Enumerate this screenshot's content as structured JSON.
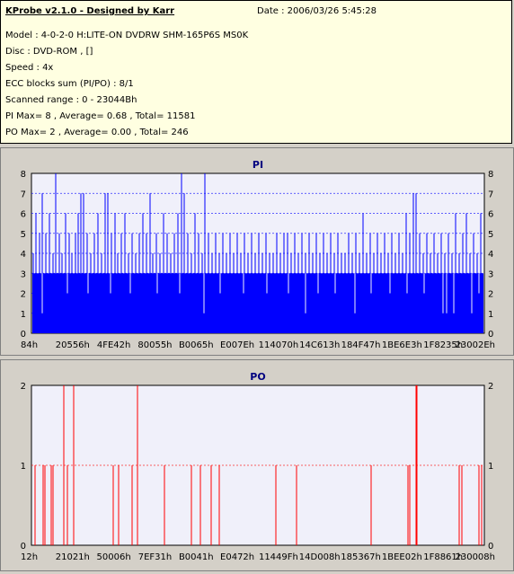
{
  "info": {
    "title": "KProbe v2.1.0 - Designed by Karr",
    "date": "Date : 2006/03/26 5:45:28",
    "lines": [
      "Model : 4-0-2-0 H:LITE-ON DVDRW SHM-165P6S MS0K",
      "Disc : DVD-ROM ,  []",
      "Speed : 4x",
      "ECC blocks sum (PI/PO) : 8/1",
      "Scanned range : 0 - 23044Bh",
      "PI Max= 8 , Average= 0.68 , Total= 11581",
      "PO Max= 2 , Average= 0.00 , Total= 246"
    ]
  },
  "colors": {
    "pi": "#0000ff",
    "po": "#ff0000",
    "plot_bg": "#f0f0fa",
    "title": "#000080"
  },
  "chart_data": [
    {
      "type": "bar",
      "title": "PI",
      "ylim": [
        0,
        8
      ],
      "yticks": [
        0,
        1,
        2,
        3,
        4,
        5,
        6,
        7,
        8
      ],
      "xticks": [
        "84h",
        "20556h",
        "4FE42h",
        "80055h",
        "B0065h",
        "E007Eh",
        "114070h",
        "14C613h",
        "184F47h",
        "1BE6E3h",
        "1F8235h",
        "23002Eh"
      ],
      "baseline": 3,
      "spikes": [
        {
          "x": 2,
          "v": 4
        },
        {
          "x": 5,
          "v": 6
        },
        {
          "x": 9,
          "v": 5
        },
        {
          "x": 12,
          "v": 7
        },
        {
          "x": 16,
          "v": 5
        },
        {
          "x": 20,
          "v": 6
        },
        {
          "x": 24,
          "v": 4
        },
        {
          "x": 27,
          "v": 8
        },
        {
          "x": 31,
          "v": 5
        },
        {
          "x": 34,
          "v": 4
        },
        {
          "x": 38,
          "v": 6
        },
        {
          "x": 42,
          "v": 5
        },
        {
          "x": 45,
          "v": 4
        },
        {
          "x": 49,
          "v": 5
        },
        {
          "x": 52,
          "v": 6
        },
        {
          "x": 55,
          "v": 7
        },
        {
          "x": 58,
          "v": 7
        },
        {
          "x": 62,
          "v": 5
        },
        {
          "x": 66,
          "v": 4
        },
        {
          "x": 70,
          "v": 5
        },
        {
          "x": 74,
          "v": 6
        },
        {
          "x": 78,
          "v": 4
        },
        {
          "x": 82,
          "v": 7
        },
        {
          "x": 85,
          "v": 7
        },
        {
          "x": 89,
          "v": 5
        },
        {
          "x": 93,
          "v": 6
        },
        {
          "x": 96,
          "v": 4
        },
        {
          "x": 100,
          "v": 5
        },
        {
          "x": 104,
          "v": 6
        },
        {
          "x": 108,
          "v": 4
        },
        {
          "x": 112,
          "v": 5
        },
        {
          "x": 116,
          "v": 4
        },
        {
          "x": 120,
          "v": 5
        },
        {
          "x": 124,
          "v": 6
        },
        {
          "x": 128,
          "v": 5
        },
        {
          "x": 132,
          "v": 7
        },
        {
          "x": 135,
          "v": 4
        },
        {
          "x": 139,
          "v": 5
        },
        {
          "x": 143,
          "v": 4
        },
        {
          "x": 147,
          "v": 6
        },
        {
          "x": 151,
          "v": 5
        },
        {
          "x": 155,
          "v": 4
        },
        {
          "x": 159,
          "v": 5
        },
        {
          "x": 163,
          "v": 6
        },
        {
          "x": 167,
          "v": 8
        },
        {
          "x": 170,
          "v": 7
        },
        {
          "x": 174,
          "v": 5
        },
        {
          "x": 178,
          "v": 4
        },
        {
          "x": 182,
          "v": 6
        },
        {
          "x": 186,
          "v": 5
        },
        {
          "x": 190,
          "v": 4
        },
        {
          "x": 193,
          "v": 8
        },
        {
          "x": 197,
          "v": 5
        },
        {
          "x": 201,
          "v": 4
        },
        {
          "x": 205,
          "v": 5
        },
        {
          "x": 209,
          "v": 4
        },
        {
          "x": 213,
          "v": 5
        },
        {
          "x": 217,
          "v": 4
        },
        {
          "x": 221,
          "v": 5
        },
        {
          "x": 225,
          "v": 4
        },
        {
          "x": 229,
          "v": 5
        },
        {
          "x": 233,
          "v": 4
        },
        {
          "x": 237,
          "v": 5
        },
        {
          "x": 241,
          "v": 4
        },
        {
          "x": 245,
          "v": 5
        },
        {
          "x": 249,
          "v": 4
        },
        {
          "x": 253,
          "v": 5
        },
        {
          "x": 257,
          "v": 4
        },
        {
          "x": 261,
          "v": 5
        },
        {
          "x": 265,
          "v": 4
        },
        {
          "x": 269,
          "v": 4
        },
        {
          "x": 273,
          "v": 5
        },
        {
          "x": 277,
          "v": 4
        },
        {
          "x": 281,
          "v": 5
        },
        {
          "x": 285,
          "v": 5
        },
        {
          "x": 289,
          "v": 4
        },
        {
          "x": 293,
          "v": 5
        },
        {
          "x": 297,
          "v": 4
        },
        {
          "x": 301,
          "v": 5
        },
        {
          "x": 305,
          "v": 4
        },
        {
          "x": 309,
          "v": 5
        },
        {
          "x": 313,
          "v": 4
        },
        {
          "x": 317,
          "v": 5
        },
        {
          "x": 321,
          "v": 4
        },
        {
          "x": 325,
          "v": 5
        },
        {
          "x": 329,
          "v": 4
        },
        {
          "x": 333,
          "v": 5
        },
        {
          "x": 337,
          "v": 4
        },
        {
          "x": 341,
          "v": 5
        },
        {
          "x": 345,
          "v": 4
        },
        {
          "x": 349,
          "v": 4
        },
        {
          "x": 353,
          "v": 5
        },
        {
          "x": 357,
          "v": 4
        },
        {
          "x": 361,
          "v": 5
        },
        {
          "x": 365,
          "v": 4
        },
        {
          "x": 369,
          "v": 6
        },
        {
          "x": 373,
          "v": 4
        },
        {
          "x": 377,
          "v": 5
        },
        {
          "x": 381,
          "v": 4
        },
        {
          "x": 385,
          "v": 5
        },
        {
          "x": 389,
          "v": 4
        },
        {
          "x": 393,
          "v": 5
        },
        {
          "x": 397,
          "v": 4
        },
        {
          "x": 401,
          "v": 5
        },
        {
          "x": 405,
          "v": 4
        },
        {
          "x": 409,
          "v": 5
        },
        {
          "x": 413,
          "v": 4
        },
        {
          "x": 417,
          "v": 6
        },
        {
          "x": 421,
          "v": 5
        },
        {
          "x": 425,
          "v": 7
        },
        {
          "x": 428,
          "v": 7
        },
        {
          "x": 432,
          "v": 5
        },
        {
          "x": 436,
          "v": 4
        },
        {
          "x": 440,
          "v": 5
        },
        {
          "x": 444,
          "v": 4
        },
        {
          "x": 448,
          "v": 5
        },
        {
          "x": 452,
          "v": 4
        },
        {
          "x": 456,
          "v": 5
        },
        {
          "x": 460,
          "v": 4
        },
        {
          "x": 464,
          "v": 5
        },
        {
          "x": 468,
          "v": 4
        },
        {
          "x": 472,
          "v": 6
        },
        {
          "x": 476,
          "v": 4
        },
        {
          "x": 480,
          "v": 5
        },
        {
          "x": 484,
          "v": 6
        },
        {
          "x": 488,
          "v": 4
        },
        {
          "x": 492,
          "v": 5
        },
        {
          "x": 496,
          "v": 4
        },
        {
          "x": 500,
          "v": 6
        }
      ],
      "dips": [
        {
          "x": 12,
          "v": 1
        },
        {
          "x": 40,
          "v": 2
        },
        {
          "x": 63,
          "v": 2
        },
        {
          "x": 88,
          "v": 2
        },
        {
          "x": 110,
          "v": 2
        },
        {
          "x": 140,
          "v": 2
        },
        {
          "x": 165,
          "v": 2
        },
        {
          "x": 192,
          "v": 1
        },
        {
          "x": 210,
          "v": 2
        },
        {
          "x": 236,
          "v": 2
        },
        {
          "x": 262,
          "v": 2
        },
        {
          "x": 286,
          "v": 2
        },
        {
          "x": 305,
          "v": 1
        },
        {
          "x": 319,
          "v": 2
        },
        {
          "x": 338,
          "v": 2
        },
        {
          "x": 360,
          "v": 1
        },
        {
          "x": 378,
          "v": 2
        },
        {
          "x": 399,
          "v": 2
        },
        {
          "x": 418,
          "v": 2
        },
        {
          "x": 437,
          "v": 2
        },
        {
          "x": 458,
          "v": 1
        },
        {
          "x": 462,
          "v": 1
        },
        {
          "x": 470,
          "v": 1
        },
        {
          "x": 490,
          "v": 1
        },
        {
          "x": 498,
          "v": 2
        }
      ]
    },
    {
      "type": "bar",
      "title": "PO",
      "ylim": [
        0,
        2
      ],
      "yticks": [
        0,
        1,
        2
      ],
      "xticks": [
        "12h",
        "21021h",
        "50006h",
        "7EF31h",
        "B0041h",
        "E0472h",
        "11449Fh",
        "14D008h",
        "185367h",
        "1BEE02h",
        "1F8861h",
        "230008h"
      ],
      "spikes": [
        {
          "x": 4,
          "v": 1
        },
        {
          "x": 13,
          "v": 1
        },
        {
          "x": 15,
          "v": 1
        },
        {
          "x": 22,
          "v": 1
        },
        {
          "x": 24,
          "v": 1
        },
        {
          "x": 36,
          "v": 2
        },
        {
          "x": 40,
          "v": 1
        },
        {
          "x": 47,
          "v": 2
        },
        {
          "x": 91,
          "v": 1
        },
        {
          "x": 97,
          "v": 1
        },
        {
          "x": 112,
          "v": 1
        },
        {
          "x": 118,
          "v": 2
        },
        {
          "x": 148,
          "v": 1
        },
        {
          "x": 178,
          "v": 1
        },
        {
          "x": 188,
          "v": 1
        },
        {
          "x": 200,
          "v": 1
        },
        {
          "x": 209,
          "v": 1
        },
        {
          "x": 272,
          "v": 1
        },
        {
          "x": 295,
          "v": 1
        },
        {
          "x": 378,
          "v": 1
        },
        {
          "x": 419,
          "v": 1
        },
        {
          "x": 421,
          "v": 1
        },
        {
          "x": 428,
          "v": 2
        },
        {
          "x": 429,
          "v": 2
        },
        {
          "x": 476,
          "v": 1
        },
        {
          "x": 479,
          "v": 1
        },
        {
          "x": 498,
          "v": 1
        },
        {
          "x": 501,
          "v": 1
        }
      ]
    }
  ]
}
